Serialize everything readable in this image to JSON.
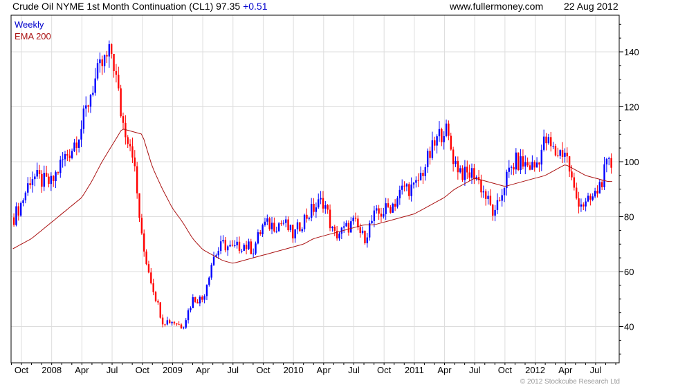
{
  "header": {
    "title": "Crude Oil NYME 1st Month Continuation (CL1)",
    "last": "97.35",
    "change": "+0.51",
    "source": "www.fullermoney.com",
    "date": "22 Aug 2012"
  },
  "footer": {
    "copyright": "© 2012 Stockcube Research Ltd"
  },
  "colors": {
    "up": "#0000ff",
    "down": "#ff0000",
    "ema": "#aa1111",
    "grid": "#dddddd"
  },
  "chart_data": {
    "type": "ohlc",
    "title": "Crude Oil NYME 1st Month Continuation (CL1)",
    "legend": [
      "Weekly",
      "EMA 200"
    ],
    "legend_position": "top-left",
    "ylim": [
      26,
      150
    ],
    "yticks": [
      40,
      60,
      80,
      100,
      120,
      140
    ],
    "xticks": [
      "Oct",
      "2008",
      "Apr",
      "Jul",
      "Oct",
      "2009",
      "Apr",
      "Jul",
      "Oct",
      "2010",
      "Apr",
      "Jul",
      "Oct",
      "2011",
      "Apr",
      "Jul",
      "Oct",
      "2012",
      "Apr",
      "Jul"
    ],
    "grid": true,
    "monthly_start": "Sep 2007",
    "monthly_close": [
      78,
      85,
      95,
      93,
      92,
      100,
      105,
      113,
      127,
      135,
      140,
      115,
      105,
      70,
      55,
      42,
      42,
      40,
      50,
      50,
      65,
      70,
      68,
      70,
      68,
      77,
      77,
      78,
      73,
      79,
      83,
      86,
      73,
      75,
      78,
      72,
      80,
      82,
      85,
      91,
      90,
      98,
      106,
      113,
      100,
      95,
      96,
      88,
      80,
      93,
      100,
      99,
      98,
      108,
      103,
      104,
      87,
      84,
      88,
      97
    ],
    "ema_200": [
      68,
      70,
      72,
      75,
      78,
      81,
      84,
      87,
      93,
      100,
      106,
      112,
      111,
      110,
      98,
      90,
      83,
      78,
      72,
      68,
      66,
      64,
      63,
      64,
      65,
      66,
      67,
      68,
      69,
      70,
      72,
      73,
      74,
      75,
      76,
      77,
      77,
      78,
      79,
      80,
      81,
      83,
      85,
      87,
      90,
      92,
      94,
      93,
      92,
      91,
      92,
      93,
      94,
      95,
      97,
      99,
      97,
      95,
      94,
      93
    ]
  }
}
